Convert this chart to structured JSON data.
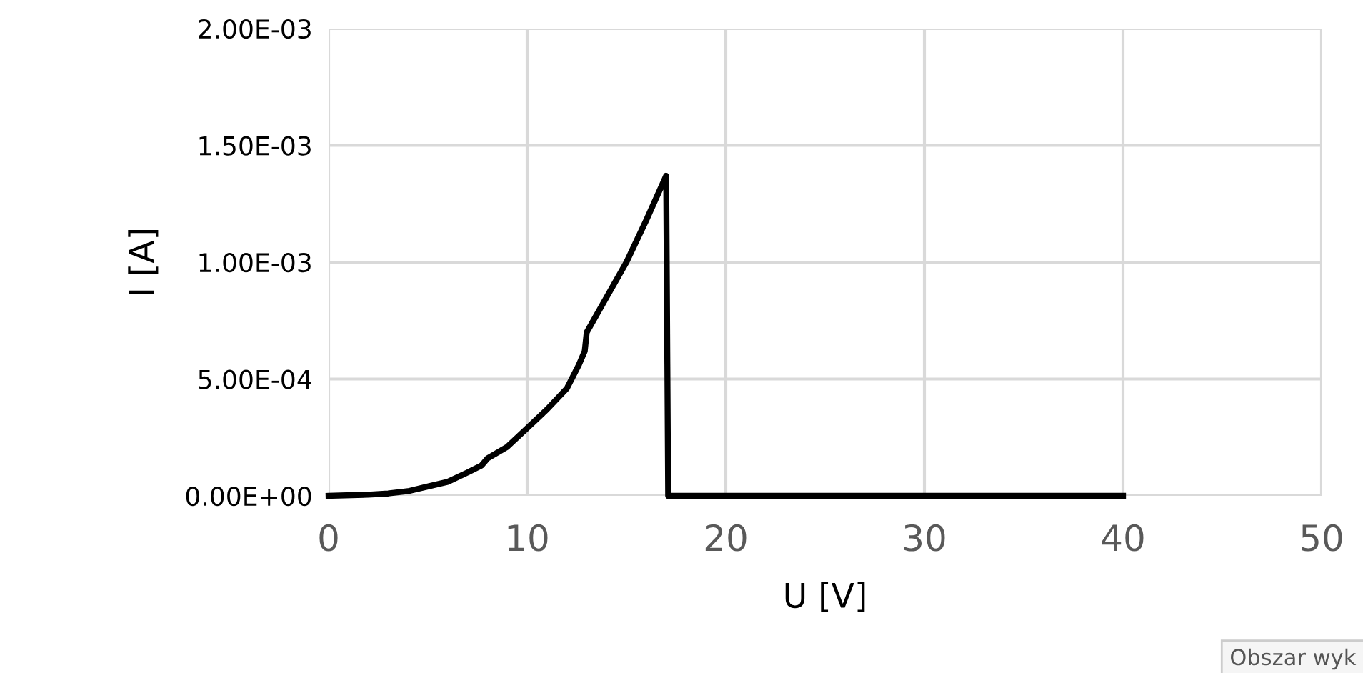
{
  "chart_data": {
    "type": "line",
    "xlabel": "U [V]",
    "ylabel": "I [A]",
    "x": [
      0,
      2,
      3,
      4,
      5,
      6,
      7,
      7.7,
      8,
      9,
      10,
      11,
      12,
      12.6,
      12.9,
      13,
      14,
      15,
      16,
      17,
      17.1,
      20,
      30,
      40
    ],
    "series": [
      {
        "color": "#000000",
        "values": [
          0,
          5e-06,
          1e-05,
          2e-05,
          4e-05,
          6e-05,
          0.0001,
          0.00013,
          0.00016,
          0.00021,
          0.00029,
          0.00037,
          0.00046,
          0.00056,
          0.00062,
          0.0007,
          0.00085,
          0.001,
          0.00118,
          0.00137,
          0,
          0,
          0,
          0
        ]
      }
    ],
    "xlim": [
      0,
      50
    ],
    "xticks": [
      0,
      10,
      20,
      30,
      40,
      50
    ],
    "ylim": [
      0,
      0.002
    ],
    "yticks": [
      {
        "value": 0,
        "label": "0.00E+00"
      },
      {
        "value": 0.0005,
        "label": "5.00E-04"
      },
      {
        "value": 0.001,
        "label": "1.00E-03"
      },
      {
        "value": 0.0015,
        "label": "1.50E-03"
      },
      {
        "value": 0.002,
        "label": "2.00E-03"
      }
    ],
    "grid": true,
    "marker": "none",
    "line_style": "solid",
    "legend": false,
    "annotations": [
      "Obszar wyk"
    ]
  }
}
